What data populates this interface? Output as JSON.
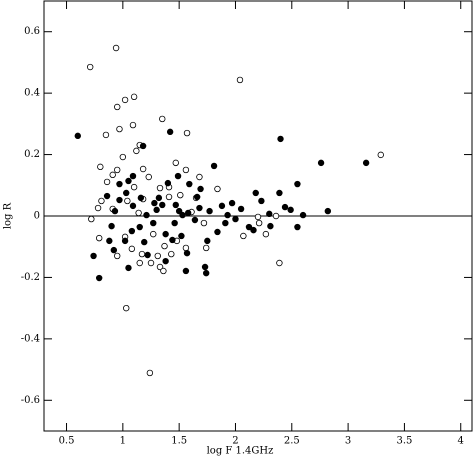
{
  "chart_data": {
    "type": "scatter",
    "xlabel": "log F 1.4GHz",
    "ylabel": "log R",
    "xlim": [
      0.3,
      4.1
    ],
    "ylim": [
      -0.7,
      0.7
    ],
    "xticks": [
      0.5,
      1,
      1.5,
      2,
      2.5,
      3,
      3.5,
      4
    ],
    "yticks": [
      -0.6,
      -0.4,
      -0.2,
      0,
      0.2,
      0.4,
      0.6
    ],
    "hline": 0,
    "series": [
      {
        "marker": "open",
        "color": "#000000",
        "x": [
          0.71,
          0.94,
          2.04,
          3.29,
          1.02,
          0.95,
          1.1,
          1.35,
          1.09,
          0.97,
          0.85,
          1.0,
          0.95,
          1.15,
          1.12,
          1.18,
          1.57,
          1.47,
          0.86,
          0.8,
          0.91,
          1.23,
          1.33,
          1.56,
          1.41,
          1.84,
          1.03,
          1.24,
          2.39,
          2.27,
          0.79,
          0.72,
          1.33,
          1.36,
          0.95,
          1.27,
          1.04,
          1.14,
          1.48,
          1.56,
          1.72,
          1.74,
          1.25,
          1.31,
          1.37,
          1.68,
          1.65,
          2.21,
          2.36,
          2.2,
          2.07,
          1.02,
          1.08,
          1.17,
          1.43,
          1.15,
          1.41,
          1.51,
          1.61,
          0.91,
          0.81,
          0.78,
          1.1,
          1.18
        ],
        "values": [
          0.485,
          0.547,
          0.443,
          0.199,
          0.378,
          0.355,
          0.388,
          0.316,
          0.296,
          0.283,
          0.264,
          0.192,
          0.15,
          0.231,
          0.212,
          0.153,
          0.27,
          0.173,
          0.111,
          0.16,
          0.134,
          0.127,
          0.091,
          0.15,
          0.094,
          0.088,
          -0.3,
          -0.511,
          -0.153,
          -0.059,
          -0.072,
          -0.01,
          -0.166,
          -0.179,
          -0.13,
          -0.059,
          0.049,
          0.01,
          -0.081,
          -0.104,
          -0.023,
          -0.104,
          -0.153,
          -0.13,
          -0.098,
          0.127,
          0.059,
          -0.023,
          0.0,
          -0.003,
          -0.065,
          -0.068,
          -0.107,
          -0.124,
          -0.124,
          -0.153,
          0.062,
          0.068,
          0.013,
          0.023,
          0.049,
          0.026,
          0.094,
          0.055
        ]
      },
      {
        "marker": "filled",
        "color": "#000000",
        "x": [
          0.6,
          1.42,
          1.18,
          1.81,
          2.4,
          2.76,
          3.16,
          2.18,
          2.39,
          2.55,
          2.82,
          2.44,
          0.79,
          0.74,
          1.74,
          1.73,
          1.66,
          1.52,
          1.56,
          1.44,
          1.22,
          1.02,
          1.27,
          1.09,
          1.03,
          1.16,
          1.32,
          1.35,
          1.47,
          1.5,
          1.58,
          1.68,
          1.77,
          1.88,
          1.97,
          2.0,
          2.16,
          2.3,
          2.49,
          2.55,
          2.6,
          2.23,
          2.31,
          0.92,
          1.15,
          1.28,
          1.4,
          1.05,
          1.09,
          0.97,
          0.86,
          0.93,
          0.9,
          1.08,
          1.19,
          1.38,
          1.46,
          1.64,
          1.75,
          1.84,
          1.91,
          2.12,
          0.97,
          1.05,
          1.38,
          1.3,
          1.59,
          1.49,
          1.69,
          1.57,
          2.05,
          0.88,
          1.21,
          1.53,
          1.93
        ],
        "values": [
          0.261,
          0.274,
          0.228,
          0.163,
          0.251,
          0.173,
          0.173,
          0.075,
          0.075,
          0.104,
          0.016,
          0.029,
          -0.202,
          -0.13,
          -0.186,
          -0.166,
          0.062,
          -0.065,
          -0.179,
          -0.078,
          -0.127,
          -0.081,
          -0.023,
          0.033,
          0.075,
          0.059,
          0.059,
          0.036,
          0.036,
          0.016,
          0.01,
          0.026,
          0.016,
          0.033,
          0.042,
          -0.01,
          -0.046,
          0.007,
          0.02,
          -0.036,
          0.003,
          0.049,
          -0.033,
          -0.111,
          -0.036,
          0.042,
          0.107,
          0.114,
          0.13,
          0.104,
          0.065,
          0.016,
          -0.033,
          -0.049,
          -0.085,
          -0.059,
          -0.023,
          -0.013,
          -0.081,
          -0.052,
          -0.023,
          -0.036,
          0.052,
          -0.169,
          -0.147,
          0.02,
          0.104,
          0.13,
          0.088,
          -0.121,
          0.023,
          -0.081,
          0.003,
          0.003,
          0.003
        ]
      }
    ]
  }
}
